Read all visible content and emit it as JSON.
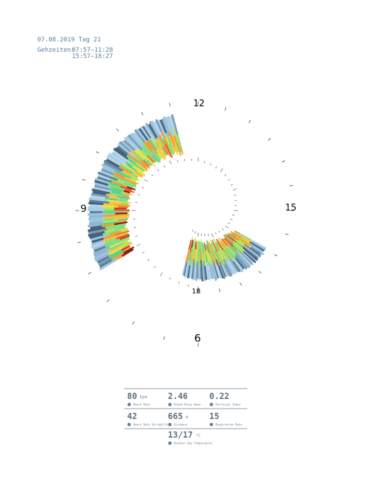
{
  "header": {
    "date": "07.08.2019 Tag 21",
    "times_label": "Gehzeiten:",
    "times": [
      "07:57–11:28",
      "15:57–18:27"
    ]
  },
  "clock": {
    "labels": [
      "12",
      "15",
      "18",
      "9",
      "6"
    ]
  },
  "stats": [
    {
      "value": "80",
      "unit": "bpm",
      "label": "Heart Rate"
    },
    {
      "value": "2.46",
      "label": "Blood Pulse Wave"
    },
    {
      "value": "0.22",
      "label": "Perfusion Index"
    },
    {
      "value": "42",
      "label": "Heart Rate Variability"
    },
    {
      "value": "665",
      "unit": "m",
      "label": "Distance"
    },
    {
      "value": "15",
      "label": "Respiration Rate"
    },
    {
      "value": "13/17",
      "unit": "°C",
      "label": "Outdoor Day Temperature"
    }
  ]
}
